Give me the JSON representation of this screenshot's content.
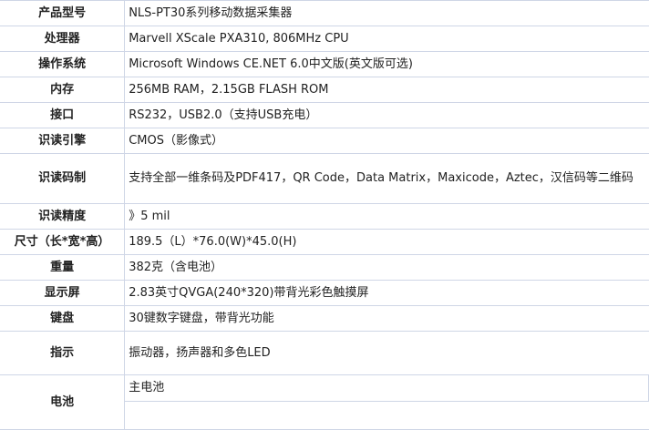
{
  "specs": [
    {
      "label": "产品型号",
      "value": "NLS-PT30系列移动数据采集器"
    },
    {
      "label": "处理器",
      "value": "Marvell XScale PXA310, 806MHz CPU"
    },
    {
      "label": "操作系统",
      "value": "Microsoft Windows CE.NET 6.0中文版(英文版可选)"
    },
    {
      "label": "内存",
      "value": "256MB RAM，2.15GB FLASH ROM"
    },
    {
      "label": "接口",
      "value": "RS232，USB2.0（支持USB充电）"
    },
    {
      "label": "识读引擎",
      "value": "CMOS（影像式）"
    },
    {
      "label": "识读码制",
      "value": "支持全部一维条码及PDF417，QR Code，Data Matrix，Maxicode，Aztec，汉信码等二维码"
    },
    {
      "label": "识读精度",
      "value": "》5 mil"
    },
    {
      "label": "尺寸（长*宽*高）",
      "value": "189.5（L）*76.0(W)*45.0(H)"
    },
    {
      "label": "重量",
      "value": "382克（含电池）"
    },
    {
      "label": "显示屏",
      "value": "2.83英寸QVGA(240*320)带背光彩色触摸屏"
    },
    {
      "label": "键盘",
      "value": "30键数字键盘，带背光功能"
    },
    {
      "label": "指示",
      "value": "振动器，扬声器和多色LED"
    },
    {
      "label": "电池",
      "value": "主电池"
    }
  ]
}
